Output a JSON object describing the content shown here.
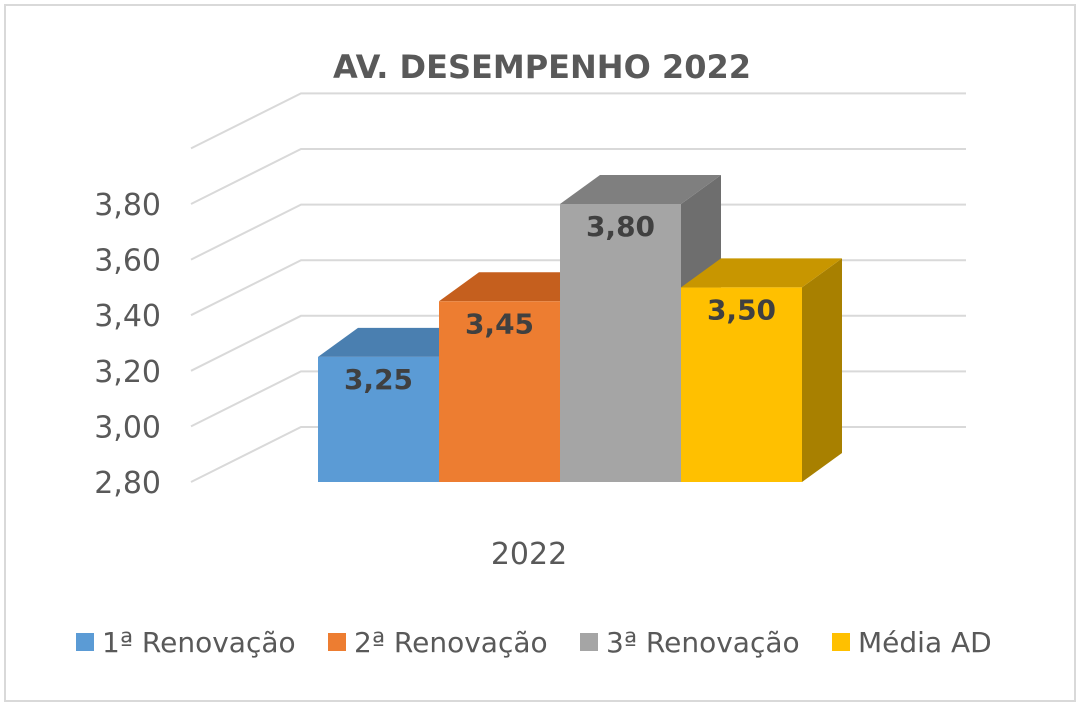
{
  "chart_data": {
    "type": "bar",
    "title": "AV. DESEMPENHO 2022",
    "categories": [
      "2022"
    ],
    "series": [
      {
        "name": "1ª Renovação",
        "values": [
          3.25
        ],
        "label": "3,25",
        "color": "#5b9bd5",
        "top_color": "#4a7fb0",
        "side_color": "#3f6f9b"
      },
      {
        "name": "2ª Renovação",
        "values": [
          3.45
        ],
        "label": "3,45",
        "color": "#ed7d31",
        "top_color": "#c55f1e",
        "side_color": "#b0541b"
      },
      {
        "name": "3ª Renovação",
        "values": [
          3.8
        ],
        "label": "3,80",
        "color": "#a5a5a5",
        "top_color": "#7f7f7f",
        "side_color": "#6e6e6e"
      },
      {
        "name": "Média AD",
        "values": [
          3.5
        ],
        "label": "3,50",
        "color": "#ffc000",
        "top_color": "#c89600",
        "side_color": "#a88000"
      }
    ],
    "y_ticks": [
      "2,80",
      "3,00",
      "3,20",
      "3,40",
      "3,60",
      "3,80"
    ],
    "y_tick_values": [
      2.8,
      3.0,
      3.2,
      3.4,
      3.6,
      3.8
    ],
    "ylim": [
      2.8,
      4.0
    ],
    "grid": true,
    "legend_position": "bottom",
    "projection": "3d"
  }
}
